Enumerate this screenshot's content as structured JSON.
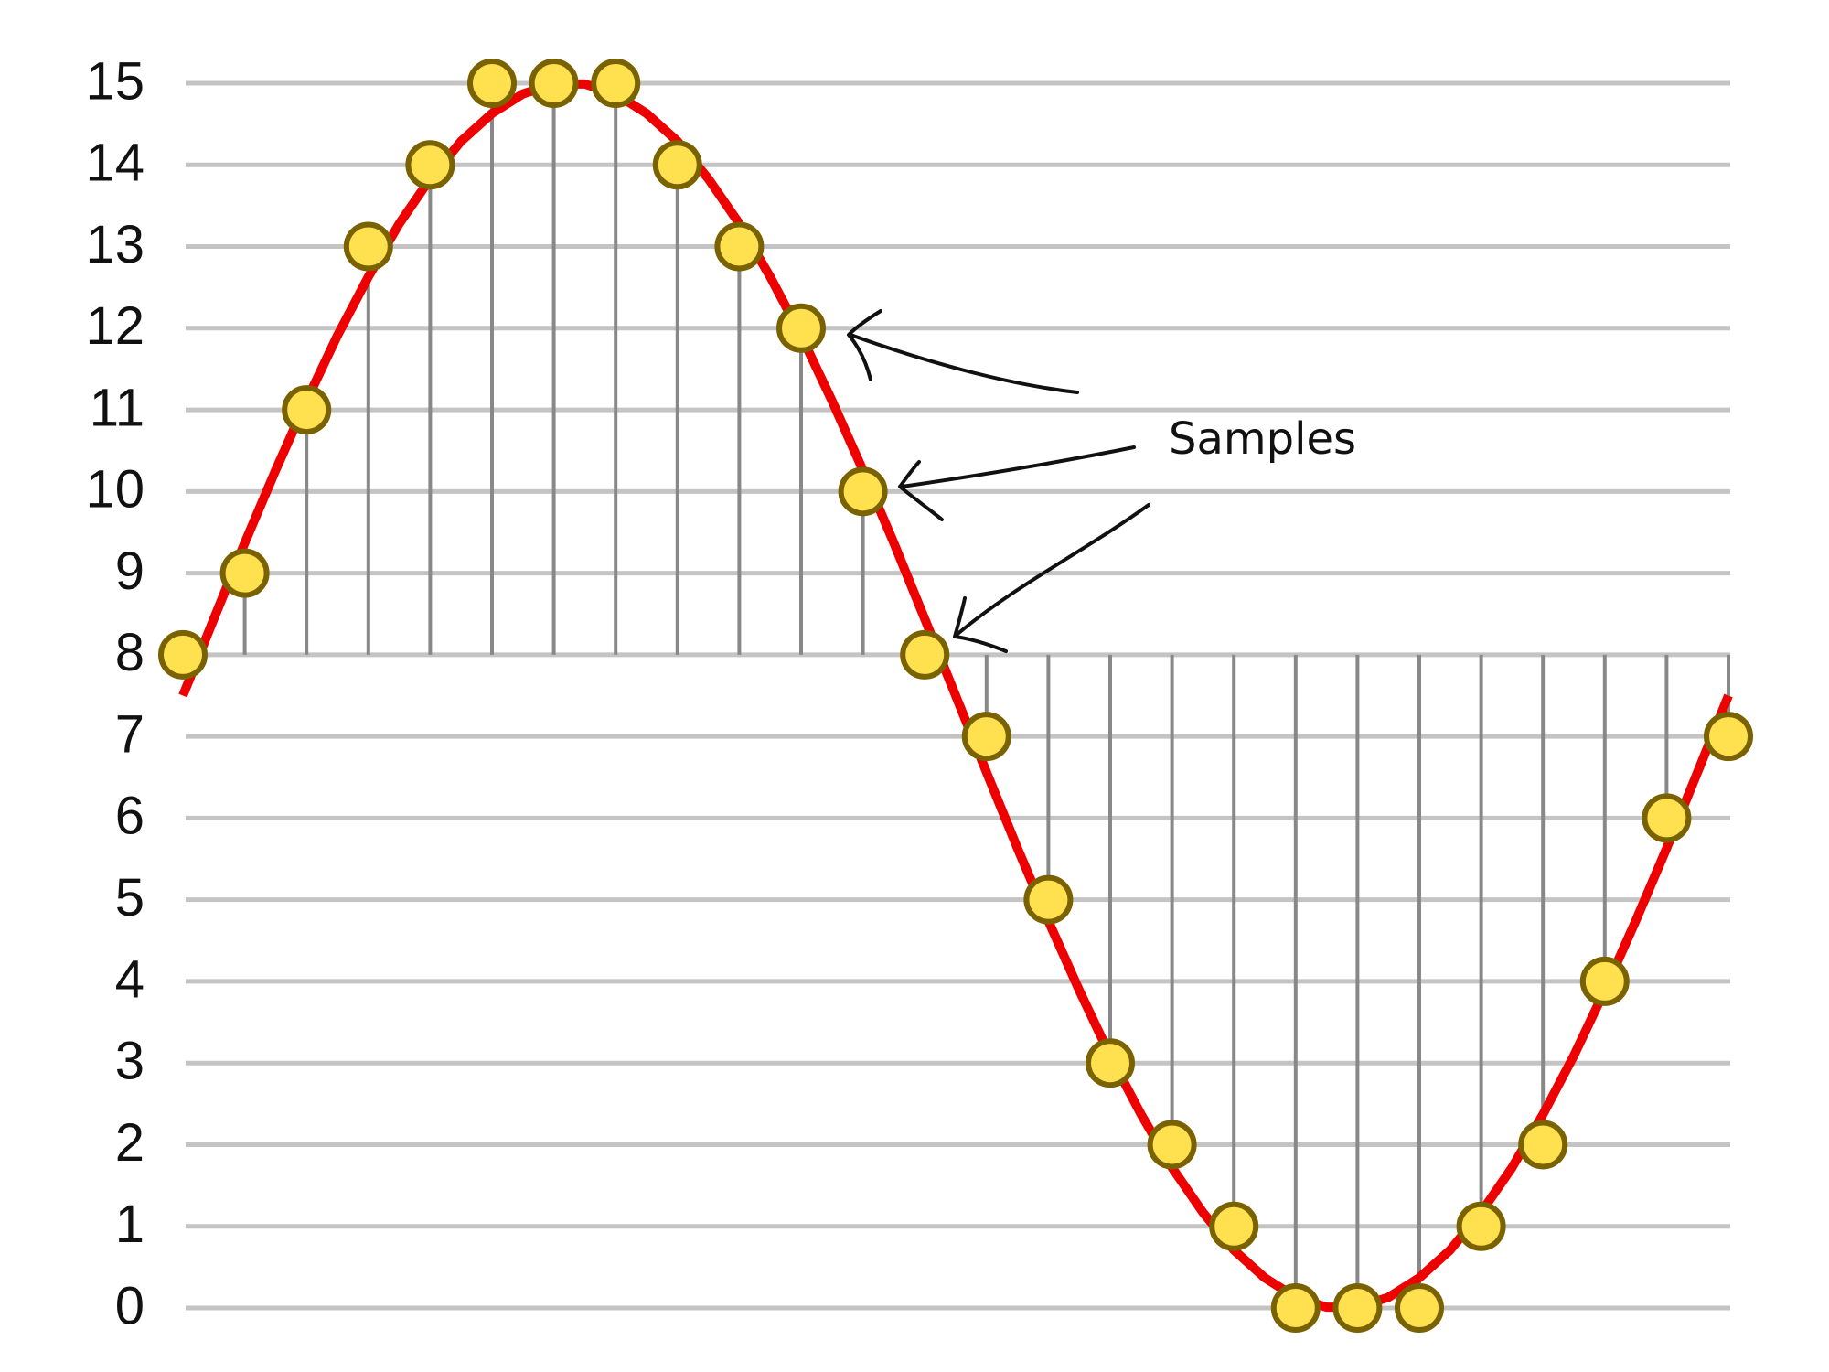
{
  "chart_data": {
    "type": "stem",
    "annotation": "Samples",
    "samples": {
      "x": [
        0,
        1,
        2,
        3,
        4,
        5,
        6,
        7,
        8,
        9,
        10,
        11,
        12,
        13,
        14,
        15,
        16,
        17,
        18,
        19,
        20,
        21,
        22,
        23,
        24,
        25
      ],
      "values": [
        8,
        9,
        11,
        13,
        14,
        15,
        15,
        15,
        14,
        13,
        12,
        10,
        8,
        7,
        5,
        3,
        2,
        1,
        0,
        0,
        0,
        1,
        2,
        4,
        6,
        7
      ],
      "color": "#ffe04f",
      "edge_color": "#7a6200",
      "stem_color": "#888888"
    },
    "baseline": 8,
    "curve": {
      "color": "#ee0000",
      "x": [
        0,
        0.5,
        1,
        1.5,
        2,
        2.5,
        3,
        3.5,
        4,
        4.5,
        5,
        5.5,
        6,
        6.5,
        7,
        7.5,
        8,
        8.5,
        9,
        9.5,
        10,
        10.5,
        11,
        11.5,
        12,
        12.5,
        13,
        13.5,
        14,
        14.5,
        15,
        15.5,
        16,
        16.5,
        17,
        17.5,
        18,
        18.5,
        19,
        19.5,
        20,
        20.5,
        21,
        21.5,
        22,
        22.5,
        23,
        23.5,
        24,
        24.5,
        25
      ],
      "values": [
        7.5,
        8.44,
        9.37,
        10.26,
        11.11,
        11.91,
        12.63,
        13.28,
        13.83,
        14.29,
        14.63,
        14.87,
        14.99,
        14.99,
        14.87,
        14.63,
        14.29,
        13.83,
        13.28,
        12.63,
        11.91,
        11.11,
        10.26,
        9.37,
        8.44,
        7.5,
        6.56,
        5.63,
        4.74,
        3.89,
        3.09,
        2.37,
        1.72,
        1.17,
        0.71,
        0.37,
        0.13,
        0.01,
        0.01,
        0.13,
        0.37,
        0.71,
        1.17,
        1.72,
        2.37,
        3.09,
        3.89,
        4.74,
        5.63,
        6.56,
        7.5
      ]
    },
    "xlim": [
      0,
      25
    ],
    "ylim": [
      0,
      15
    ],
    "yticks": [
      0,
      1,
      2,
      3,
      4,
      5,
      6,
      7,
      8,
      9,
      10,
      11,
      12,
      13,
      14,
      15
    ],
    "grid": true
  }
}
